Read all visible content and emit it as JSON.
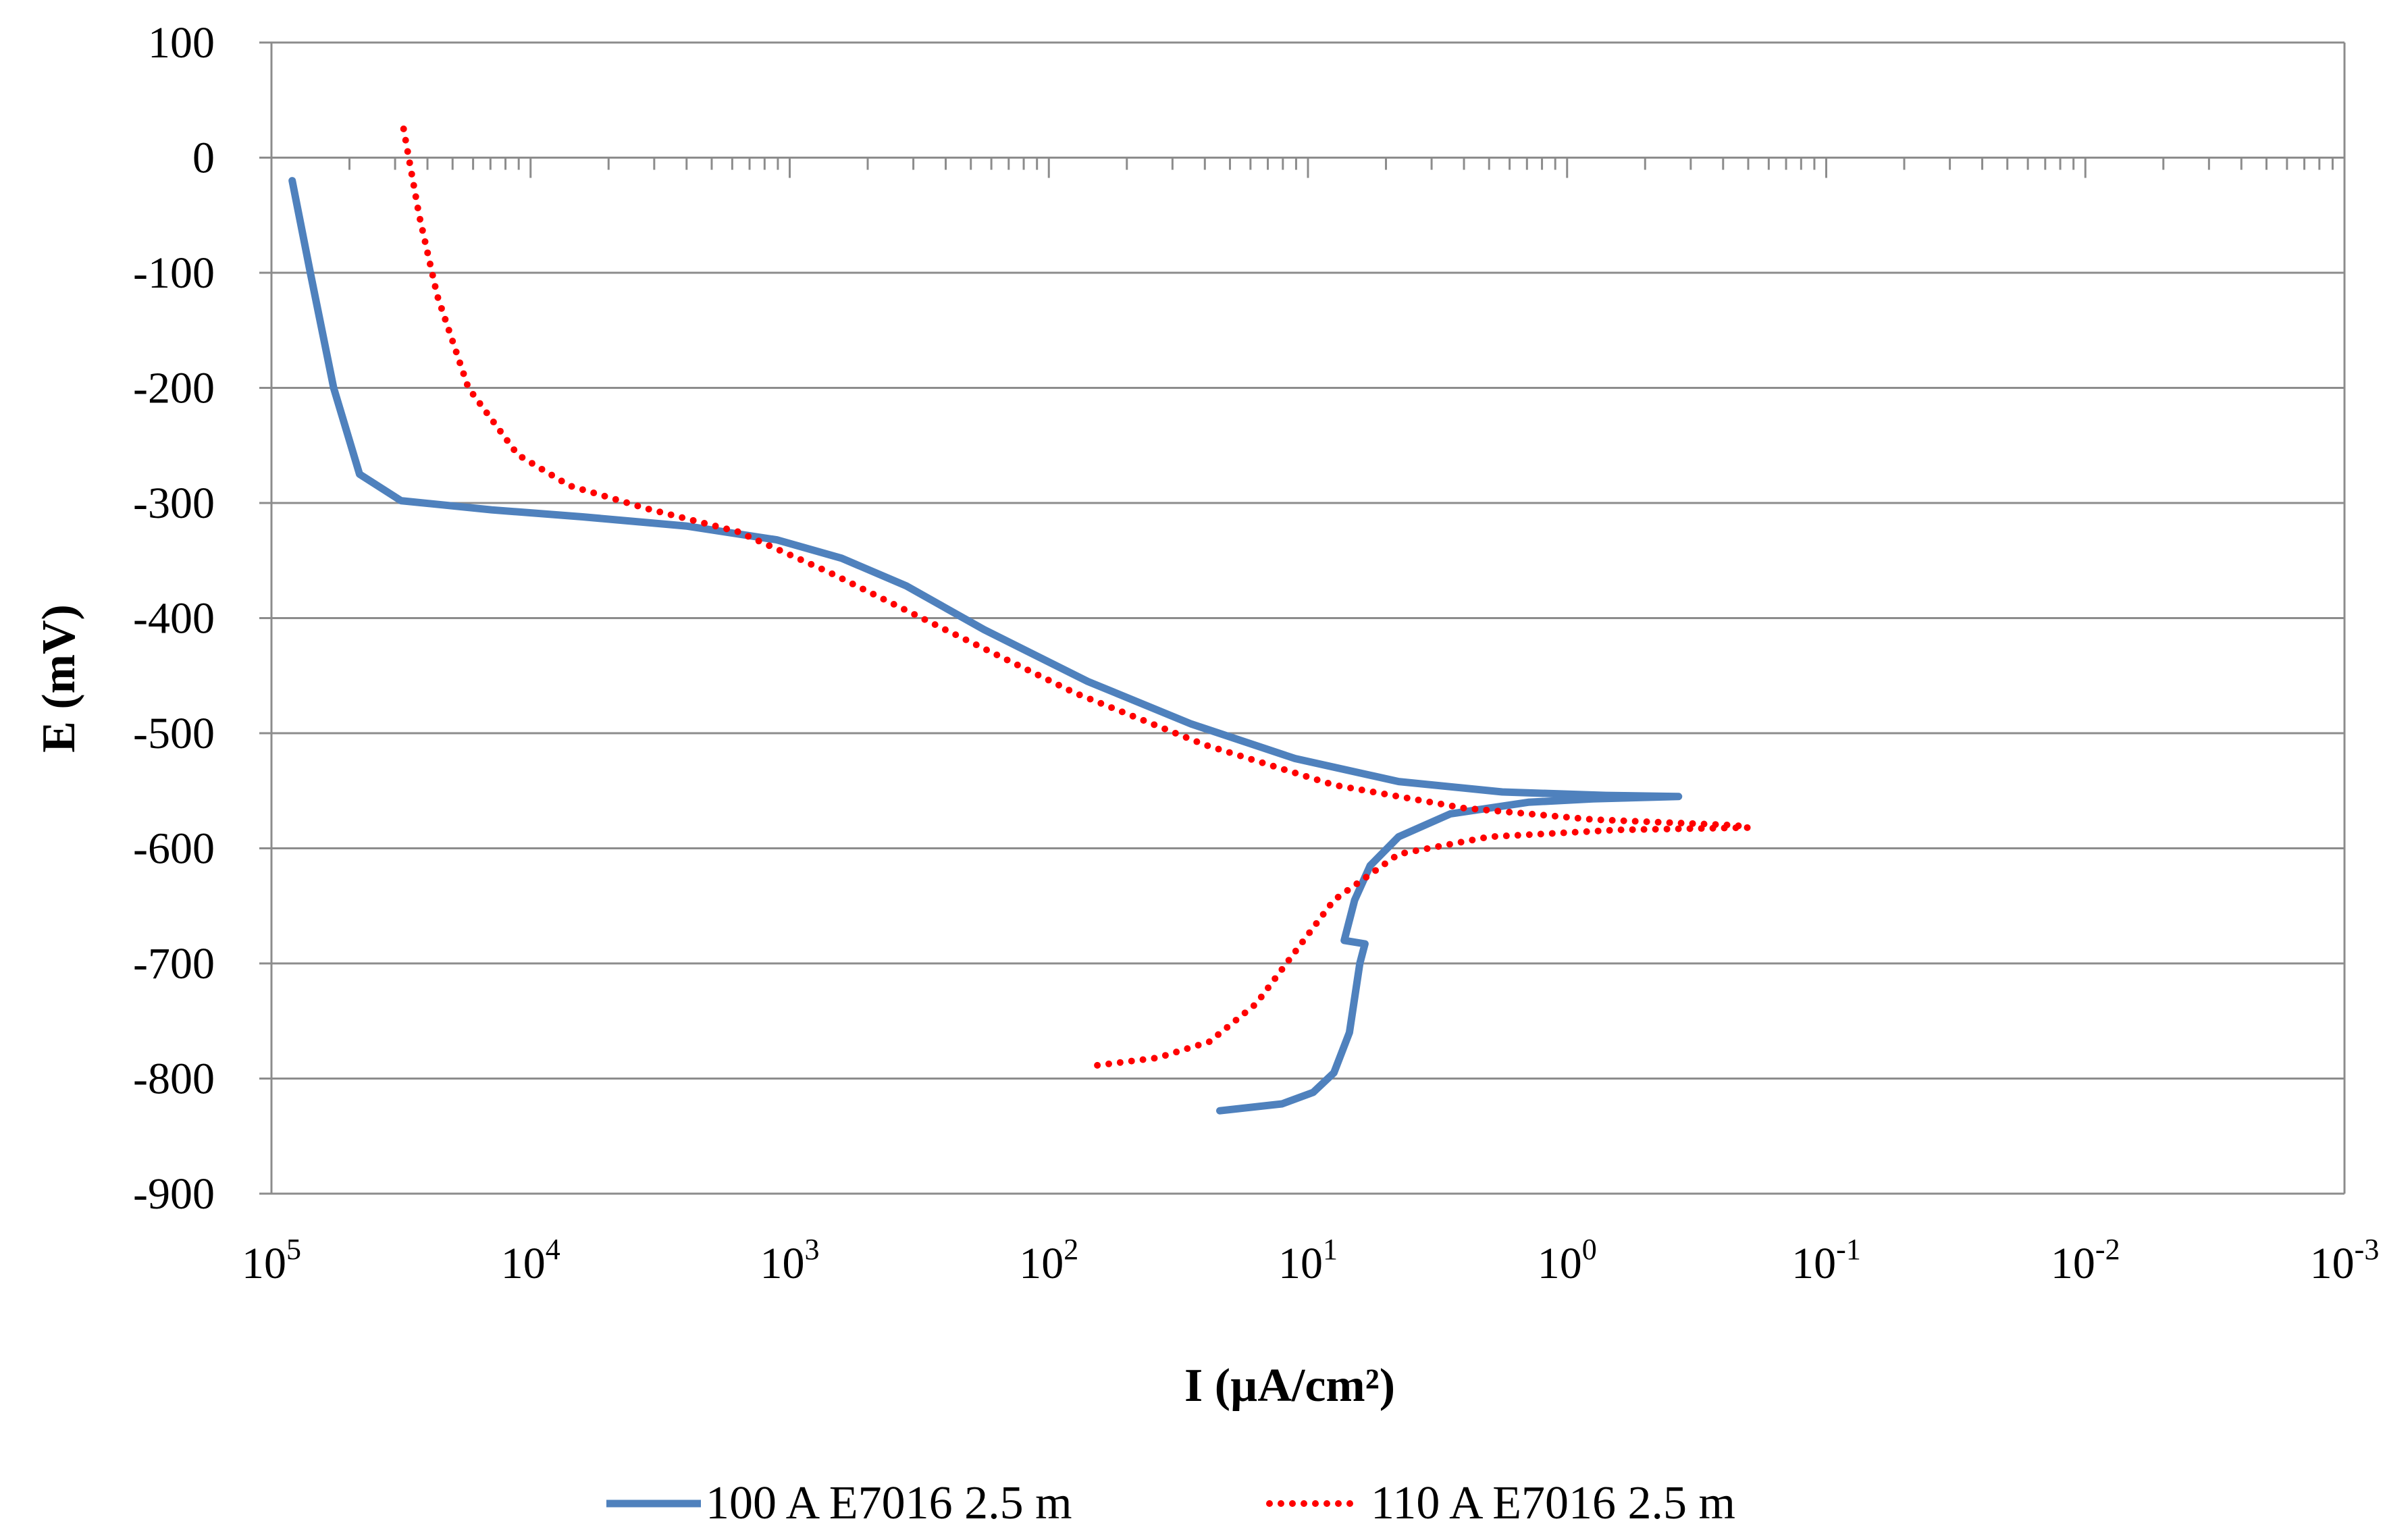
{
  "chart_data": {
    "type": "line",
    "title": "",
    "xlabel": "I (µA/cm²)",
    "ylabel": "E (mV)",
    "x_scale": "log",
    "x_reversed": true,
    "xlim_exp": [
      5,
      -3
    ],
    "x_ticks": [
      {
        "base": "10",
        "exp": "5",
        "value_exp": 5
      },
      {
        "base": "10",
        "exp": "4",
        "value_exp": 4
      },
      {
        "base": "10",
        "exp": "3",
        "value_exp": 3
      },
      {
        "base": "10",
        "exp": "2",
        "value_exp": 2
      },
      {
        "base": "10",
        "exp": "1",
        "value_exp": 1
      },
      {
        "base": "10",
        "exp": "0",
        "value_exp": 0
      },
      {
        "base": "10",
        "exp": "-1",
        "value_exp": -1
      },
      {
        "base": "10",
        "exp": "-2",
        "value_exp": -2
      },
      {
        "base": "10",
        "exp": "-3",
        "value_exp": -3
      }
    ],
    "ylim": [
      -900,
      100
    ],
    "y_ticks": [
      100,
      0,
      -100,
      -200,
      -300,
      -400,
      -500,
      -600,
      -700,
      -800,
      -900
    ],
    "grid": true,
    "legend_position": "bottom",
    "series": [
      {
        "name": "100 A E7016 2.5 m",
        "color": "#4F81BD",
        "style": "solid",
        "points": [
          {
            "log_i": 4.92,
            "e": -20
          },
          {
            "log_i": 4.85,
            "e": -100
          },
          {
            "log_i": 4.76,
            "e": -200
          },
          {
            "log_i": 4.66,
            "e": -275
          },
          {
            "log_i": 4.5,
            "e": -298
          },
          {
            "log_i": 4.15,
            "e": -306
          },
          {
            "log_i": 3.8,
            "e": -312
          },
          {
            "log_i": 3.4,
            "e": -320
          },
          {
            "log_i": 3.05,
            "e": -332
          },
          {
            "log_i": 2.8,
            "e": -348
          },
          {
            "log_i": 2.55,
            "e": -372
          },
          {
            "log_i": 2.25,
            "e": -410
          },
          {
            "log_i": 1.85,
            "e": -455
          },
          {
            "log_i": 1.45,
            "e": -492
          },
          {
            "log_i": 1.05,
            "e": -522
          },
          {
            "log_i": 0.65,
            "e": -542
          },
          {
            "log_i": 0.25,
            "e": -551
          },
          {
            "log_i": -0.15,
            "e": -554
          },
          {
            "log_i": -0.43,
            "e": -555
          },
          {
            "log_i": -0.1,
            "e": -557
          },
          {
            "log_i": 0.15,
            "e": -560
          },
          {
            "log_i": 0.45,
            "e": -570
          },
          {
            "log_i": 0.65,
            "e": -590
          },
          {
            "log_i": 0.76,
            "e": -615
          },
          {
            "log_i": 0.82,
            "e": -645
          },
          {
            "log_i": 0.86,
            "e": -680
          },
          {
            "log_i": 0.78,
            "e": -683
          },
          {
            "log_i": 0.8,
            "e": -700
          },
          {
            "log_i": 0.84,
            "e": -760
          },
          {
            "log_i": 0.9,
            "e": -795
          },
          {
            "log_i": 0.98,
            "e": -812
          },
          {
            "log_i": 1.1,
            "e": -822
          },
          {
            "log_i": 1.34,
            "e": -828
          }
        ]
      },
      {
        "name": "110 A E7016 2.5 m",
        "color": "#FF0000",
        "style": "dotted",
        "points": [
          {
            "log_i": 4.49,
            "e": 25
          },
          {
            "log_i": 4.43,
            "e": -50
          },
          {
            "log_i": 4.36,
            "e": -120
          },
          {
            "log_i": 4.24,
            "e": -200
          },
          {
            "log_i": 4.05,
            "e": -258
          },
          {
            "log_i": 3.85,
            "e": -285
          },
          {
            "log_i": 3.55,
            "e": -305
          },
          {
            "log_i": 3.2,
            "e": -325
          },
          {
            "log_i": 2.85,
            "e": -360
          },
          {
            "log_i": 2.4,
            "e": -410
          },
          {
            "log_i": 1.9,
            "e": -465
          },
          {
            "log_i": 1.4,
            "e": -510
          },
          {
            "log_i": 0.9,
            "e": -545
          },
          {
            "log_i": 0.4,
            "e": -565
          },
          {
            "log_i": -0.1,
            "e": -575
          },
          {
            "log_i": -0.65,
            "e": -580
          },
          {
            "log_i": -0.7,
            "e": -582
          },
          {
            "log_i": -0.2,
            "e": -584
          },
          {
            "log_i": 0.3,
            "e": -590
          },
          {
            "log_i": 0.65,
            "e": -605
          },
          {
            "log_i": 0.9,
            "e": -645
          },
          {
            "log_i": 1.05,
            "e": -690
          },
          {
            "log_i": 1.2,
            "e": -735
          },
          {
            "log_i": 1.38,
            "e": -768
          },
          {
            "log_i": 1.58,
            "e": -782
          },
          {
            "log_i": 1.83,
            "e": -789
          }
        ]
      }
    ]
  }
}
